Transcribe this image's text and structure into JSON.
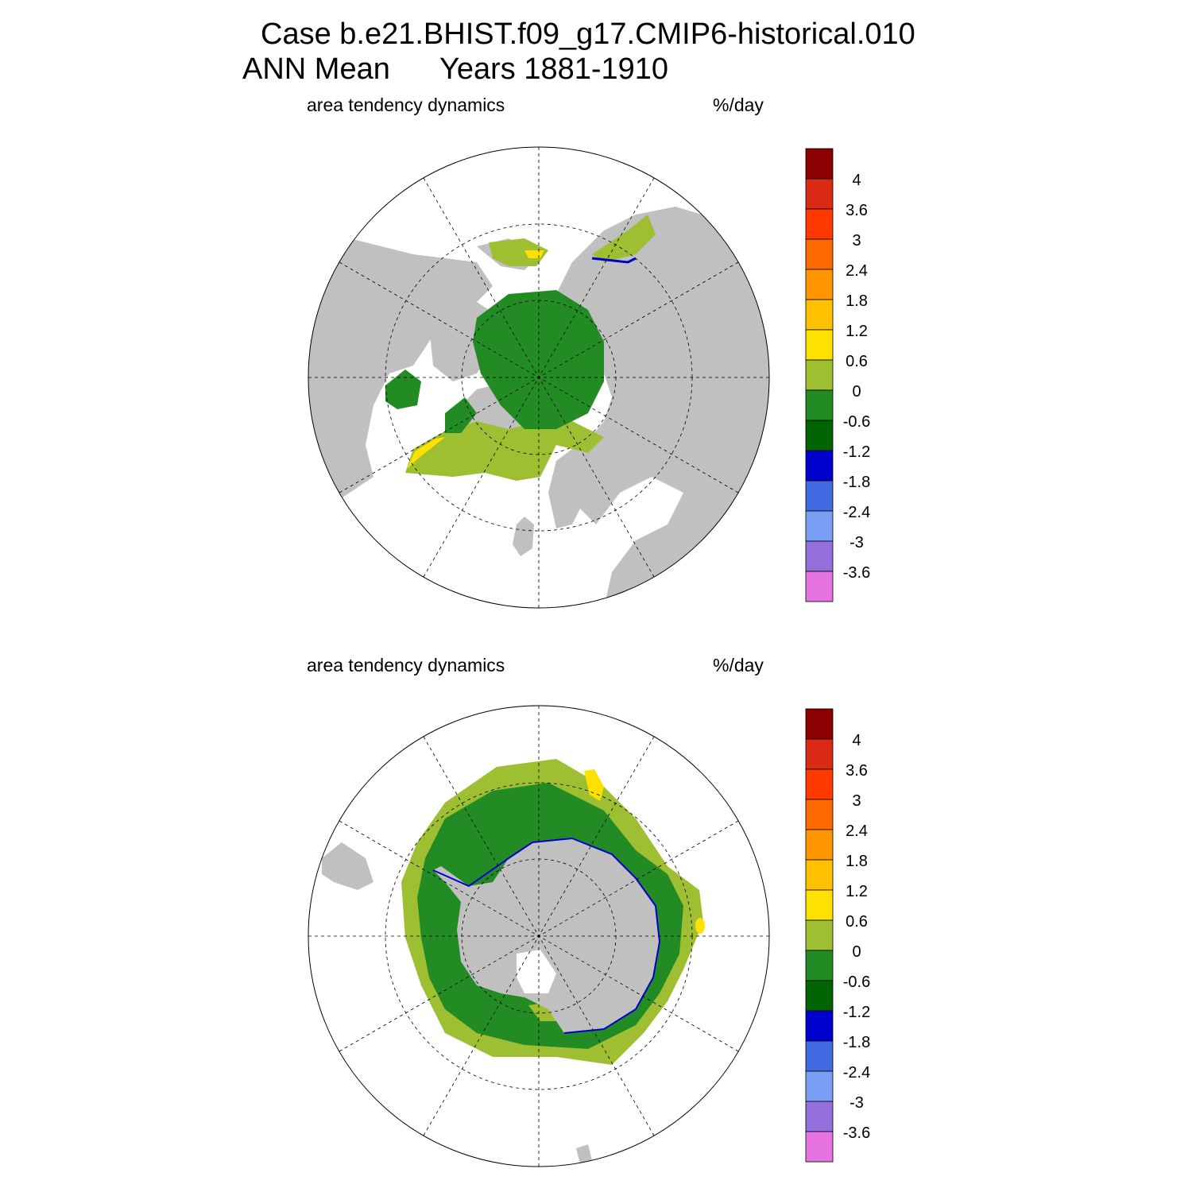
{
  "header": {
    "line1": "Case b.e21.BHIST.f09_g17.CMIP6-historical.010",
    "line2": "ANN Mean",
    "line3": "Years 1881-1910"
  },
  "panels": [
    {
      "hemisphere": "north",
      "left_label": "area tendency dynamics",
      "right_label": "%/day"
    },
    {
      "hemisphere": "south",
      "left_label": "area tendency dynamics",
      "right_label": "%/day"
    }
  ],
  "colorbar": {
    "colors": [
      "#8b0000",
      "#d92b13",
      "#ff3a00",
      "#ff6a00",
      "#ff9500",
      "#ffc000",
      "#ffe100",
      "#9dbf31",
      "#238b23",
      "#006400",
      "#0000cd",
      "#4169e1",
      "#7b9ef5",
      "#9370db",
      "#e573e0"
    ],
    "labels": [
      "4",
      "3.6",
      "3",
      "2.4",
      "1.8",
      "1.2",
      "0.6",
      "0",
      "-0.6",
      "-1.2",
      "-1.8",
      "-2.4",
      "-3",
      "-3.6"
    ]
  },
  "map_colors": {
    "land": "#c0c0c0",
    "ocean": "#ffffff",
    "ice_main": "#238b23",
    "ice_edge": "#9dbf31",
    "ice_positive": "#ffe100",
    "ice_dark": "#006400",
    "ice_blue": "#0000cd"
  }
}
